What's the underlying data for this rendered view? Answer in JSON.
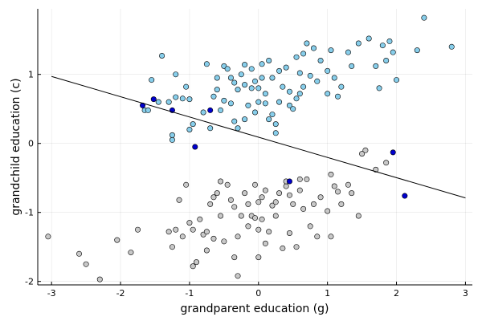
{
  "chart_data": {
    "type": "scatter",
    "xlabel": "grandparent education (g)",
    "ylabel": "grandchild education (c)",
    "xlim": [
      -3.2,
      3.1
    ],
    "ylim": [
      -2.05,
      1.95
    ],
    "x_ticks": [
      -3,
      -2,
      -1,
      0,
      1,
      2,
      3
    ],
    "y_ticks": [
      -2,
      -1,
      0,
      1
    ],
    "x_tick_labels": [
      "-3",
      "-2",
      "-1",
      "0",
      "1",
      "2",
      "3"
    ],
    "y_tick_labels": [
      "-2",
      "-1",
      "0",
      "1"
    ],
    "grid": true,
    "legend": "none",
    "colors": {
      "upper_group": "#87ceeb",
      "lower_group": "#c8c8c8",
      "highlighted": "#0000cd",
      "marker_stroke": "#000000",
      "regression_line": "#000000"
    },
    "regression_line": {
      "x": [
        -3.0,
        3.0
      ],
      "y": [
        0.97,
        -0.79
      ]
    },
    "series": [
      {
        "points": [
          [
            -1.65,
            0.48
          ],
          [
            -1.6,
            0.48
          ],
          [
            -1.55,
            0.92
          ],
          [
            -1.4,
            1.27
          ],
          [
            -1.3,
            0.6
          ],
          [
            -1.25,
            0.12
          ],
          [
            -1.25,
            0.05
          ],
          [
            -1.2,
            1.0
          ],
          [
            -1.2,
            0.67
          ],
          [
            -1.1,
            0.65
          ],
          [
            -1.05,
            0.82
          ],
          [
            -1.0,
            0.64
          ],
          [
            -1.0,
            0.2
          ],
          [
            -0.95,
            0.28
          ],
          [
            -0.8,
            0.45
          ],
          [
            -0.75,
            1.15
          ],
          [
            -0.7,
            0.22
          ],
          [
            -0.6,
            0.78
          ],
          [
            -0.6,
            0.95
          ],
          [
            -0.5,
            0.62
          ],
          [
            -0.5,
            1.12
          ],
          [
            -0.45,
            1.08
          ],
          [
            -0.4,
            0.58
          ],
          [
            -0.4,
            0.95
          ],
          [
            -0.35,
            0.32
          ],
          [
            -0.3,
            0.22
          ],
          [
            -0.3,
            0.78
          ],
          [
            -0.25,
            1.0
          ],
          [
            -0.2,
            1.14
          ],
          [
            -0.2,
            0.85
          ],
          [
            -0.15,
            0.55
          ],
          [
            -0.1,
            1.08
          ],
          [
            -0.1,
            0.8
          ],
          [
            -0.05,
            0.45
          ],
          [
            -0.05,
            0.9
          ],
          [
            0.0,
            0.6
          ],
          [
            0.0,
            0.8
          ],
          [
            0.05,
            1.15
          ],
          [
            0.05,
            0.95
          ],
          [
            0.1,
            0.72
          ],
          [
            0.1,
            0.58
          ],
          [
            0.15,
            1.2
          ],
          [
            0.15,
            0.35
          ],
          [
            0.2,
            0.42
          ],
          [
            0.25,
            0.28
          ],
          [
            0.25,
            0.15
          ],
          [
            0.3,
            0.6
          ],
          [
            0.35,
            0.82
          ],
          [
            0.4,
            1.1
          ],
          [
            0.45,
            0.75
          ],
          [
            0.45,
            0.55
          ],
          [
            0.5,
            0.5
          ],
          [
            0.55,
            1.25
          ],
          [
            0.6,
            1.02
          ],
          [
            0.6,
            0.72
          ],
          [
            0.65,
            0.82
          ],
          [
            0.7,
            1.45
          ],
          [
            0.75,
            0.98
          ],
          [
            0.8,
            1.38
          ],
          [
            0.85,
            0.9
          ],
          [
            0.9,
            1.2
          ],
          [
            1.0,
            1.05
          ],
          [
            1.0,
            0.72
          ],
          [
            1.05,
            1.35
          ],
          [
            1.1,
            0.95
          ],
          [
            1.15,
            0.68
          ],
          [
            1.2,
            0.82
          ],
          [
            1.3,
            1.32
          ],
          [
            1.35,
            1.12
          ],
          [
            1.45,
            1.45
          ],
          [
            1.6,
            1.52
          ],
          [
            1.7,
            1.12
          ],
          [
            1.75,
            0.8
          ],
          [
            1.8,
            1.42
          ],
          [
            1.85,
            1.2
          ],
          [
            1.9,
            1.48
          ],
          [
            1.95,
            1.32
          ],
          [
            2.0,
            0.92
          ],
          [
            2.3,
            1.35
          ],
          [
            2.4,
            1.82
          ],
          [
            2.8,
            1.4
          ],
          [
            -1.45,
            0.6
          ],
          [
            -0.55,
            0.48
          ],
          [
            -0.2,
            0.35
          ],
          [
            0.3,
            1.05
          ],
          [
            -0.65,
            0.68
          ],
          [
            -0.35,
            0.88
          ],
          [
            0.55,
            0.65
          ],
          [
            0.2,
            0.95
          ],
          [
            0.65,
            1.3
          ]
        ]
      },
      {
        "points": [
          [
            -3.05,
            -1.35
          ],
          [
            -2.6,
            -1.6
          ],
          [
            -2.5,
            -1.75
          ],
          [
            -2.3,
            -1.97
          ],
          [
            -2.05,
            -1.4
          ],
          [
            -1.85,
            -1.58
          ],
          [
            -1.75,
            -1.25
          ],
          [
            -1.3,
            -1.28
          ],
          [
            -1.25,
            -1.5
          ],
          [
            -1.2,
            -1.25
          ],
          [
            -1.15,
            -0.82
          ],
          [
            -1.1,
            -1.35
          ],
          [
            -1.05,
            -0.6
          ],
          [
            -1.0,
            -1.15
          ],
          [
            -0.95,
            -1.78
          ],
          [
            -0.95,
            -1.25
          ],
          [
            -0.9,
            -1.72
          ],
          [
            -0.85,
            -1.1
          ],
          [
            -0.8,
            -1.32
          ],
          [
            -0.75,
            -1.55
          ],
          [
            -0.7,
            -0.88
          ],
          [
            -0.65,
            -0.78
          ],
          [
            -0.6,
            -0.72
          ],
          [
            -0.55,
            -1.05
          ],
          [
            -0.5,
            -1.42
          ],
          [
            -0.45,
            -0.6
          ],
          [
            -0.4,
            -0.82
          ],
          [
            -0.35,
            -1.65
          ],
          [
            -0.35,
            -0.92
          ],
          [
            -0.3,
            -1.92
          ],
          [
            -0.3,
            -1.35
          ],
          [
            -0.25,
            -1.05
          ],
          [
            -0.2,
            -0.72
          ],
          [
            -0.15,
            -0.88
          ],
          [
            -0.15,
            -1.2
          ],
          [
            -0.1,
            -1.05
          ],
          [
            -0.05,
            -0.6
          ],
          [
            0.0,
            -0.85
          ],
          [
            0.0,
            -1.25
          ],
          [
            0.0,
            -1.65
          ],
          [
            0.05,
            -0.78
          ],
          [
            0.05,
            -1.1
          ],
          [
            0.1,
            -0.68
          ],
          [
            0.15,
            -1.28
          ],
          [
            0.2,
            -0.9
          ],
          [
            0.25,
            -1.05
          ],
          [
            0.3,
            -0.72
          ],
          [
            0.35,
            -1.52
          ],
          [
            0.4,
            -0.62
          ],
          [
            0.45,
            -1.3
          ],
          [
            0.5,
            -0.88
          ],
          [
            0.55,
            -1.5
          ],
          [
            0.6,
            -0.68
          ],
          [
            0.65,
            -0.95
          ],
          [
            0.7,
            -0.52
          ],
          [
            0.75,
            -1.2
          ],
          [
            0.8,
            -0.88
          ],
          [
            0.85,
            -1.35
          ],
          [
            0.9,
            -0.78
          ],
          [
            1.0,
            -0.98
          ],
          [
            1.05,
            -1.35
          ],
          [
            1.1,
            -0.62
          ],
          [
            1.15,
            -0.7
          ],
          [
            1.2,
            -0.88
          ],
          [
            1.3,
            -0.6
          ],
          [
            1.35,
            -0.72
          ],
          [
            1.45,
            -1.05
          ],
          [
            1.5,
            -0.15
          ],
          [
            1.55,
            -0.1
          ],
          [
            1.7,
            -0.38
          ],
          [
            1.85,
            -0.28
          ],
          [
            -0.65,
            -1.38
          ],
          [
            -0.05,
            -1.08
          ],
          [
            0.4,
            -0.55
          ],
          [
            0.6,
            -0.52
          ],
          [
            1.05,
            -0.45
          ],
          [
            -0.75,
            -1.28
          ],
          [
            0.25,
            -0.85
          ],
          [
            -0.55,
            -0.55
          ],
          [
            0.45,
            -0.75
          ],
          [
            0.1,
            -1.45
          ]
        ]
      },
      {
        "points": [
          [
            -1.68,
            0.55
          ],
          [
            -1.52,
            0.64
          ],
          [
            -1.25,
            0.48
          ],
          [
            -0.92,
            -0.05
          ],
          [
            -0.7,
            0.48
          ],
          [
            0.45,
            -0.55
          ],
          [
            1.95,
            -0.13
          ],
          [
            2.12,
            -0.76
          ]
        ]
      }
    ]
  }
}
